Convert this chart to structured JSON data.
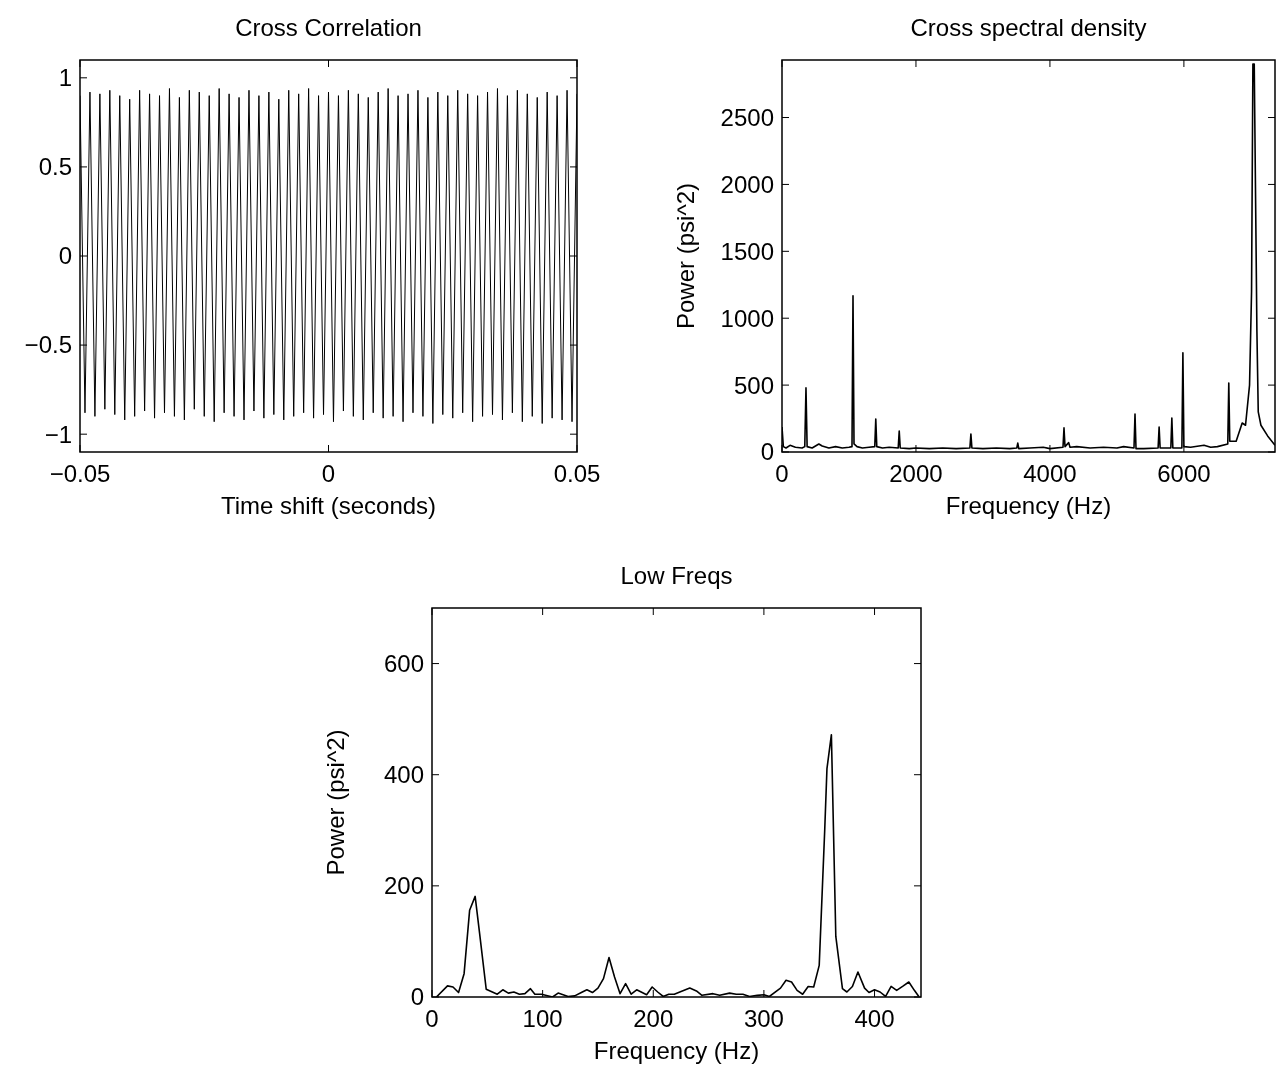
{
  "chart_data": [
    {
      "type": "line",
      "title": "Cross Correlation",
      "xlabel": "Time shift (seconds)",
      "x": [
        -0.05,
        -0.049,
        -0.048,
        -0.047,
        -0.046,
        -0.045,
        -0.044,
        -0.043,
        -0.042,
        -0.041,
        -0.04,
        -0.039,
        -0.038,
        -0.037,
        -0.036,
        -0.035,
        -0.034,
        -0.033,
        -0.032,
        -0.031,
        -0.03,
        -0.029,
        -0.028,
        -0.027,
        -0.026,
        -0.025,
        -0.024,
        -0.023,
        -0.022,
        -0.021,
        -0.02,
        -0.019,
        -0.018,
        -0.017,
        -0.016,
        -0.015,
        -0.014,
        -0.013,
        -0.012,
        -0.011,
        -0.01,
        -0.009,
        -0.008,
        -0.007,
        -0.006,
        -0.005,
        -0.004,
        -0.003,
        -0.002,
        -0.001,
        0,
        0.001,
        0.002,
        0.003,
        0.004,
        0.005,
        0.006,
        0.007,
        0.008,
        0.009,
        0.01,
        0.011,
        0.012,
        0.013,
        0.014,
        0.015,
        0.016,
        0.017,
        0.018,
        0.019,
        0.02,
        0.021,
        0.022,
        0.023,
        0.024,
        0.025,
        0.026,
        0.027,
        0.028,
        0.029,
        0.03,
        0.031,
        0.032,
        0.033,
        0.034,
        0.035,
        0.036,
        0.037,
        0.038,
        0.039,
        0.04,
        0.041,
        0.042,
        0.043,
        0.044,
        0.045,
        0.046,
        0.047,
        0.048,
        0.049,
        0.05
      ],
      "series": [
        {
          "color": "#000000",
          "values": [
            0.9,
            -0.88,
            0.92,
            -0.9,
            0.91,
            -0.86,
            0.93,
            -0.89,
            0.9,
            -0.92,
            0.88,
            -0.9,
            0.93,
            -0.87,
            0.91,
            -0.91,
            0.9,
            -0.88,
            0.94,
            -0.9,
            0.89,
            -0.92,
            0.93,
            -0.86,
            0.92,
            -0.9,
            0.9,
            -0.93,
            0.94,
            -0.88,
            0.91,
            -0.9,
            0.89,
            -0.92,
            0.93,
            -0.87,
            0.9,
            -0.91,
            0.92,
            -0.89,
            0.88,
            -0.92,
            0.93,
            -0.9,
            0.91,
            -0.88,
            0.94,
            -0.91,
            0.9,
            -0.89,
            0.92,
            -0.93,
            0.9,
            -0.87,
            0.93,
            -0.9,
            0.91,
            -0.92,
            0.89,
            -0.88,
            0.92,
            -0.91,
            0.94,
            -0.9,
            0.9,
            -0.93,
            0.91,
            -0.88,
            0.93,
            -0.9,
            0.89,
            -0.94,
            0.92,
            -0.89,
            0.9,
            -0.91,
            0.93,
            -0.88,
            0.91,
            -0.93,
            0.9,
            -0.9,
            0.92,
            -0.89,
            0.94,
            -0.92,
            0.9,
            -0.88,
            0.93,
            -0.93,
            0.91,
            -0.9,
            0.89,
            -0.94,
            0.92,
            -0.91,
            0.9,
            -0.92,
            0.93,
            -0.93,
            0.91
          ]
        }
      ],
      "xlim": [
        -0.05,
        0.05
      ],
      "xticks": [
        {
          "value": -0.05,
          "label": "−0.05"
        },
        0,
        0.05
      ],
      "ylim": [
        -1.1,
        1.1
      ],
      "yticks": [
        {
          "value": -1,
          "label": "−1"
        },
        {
          "value": -0.5,
          "label": "−0.5"
        },
        0,
        0.5,
        1
      ],
      "grid": false
    },
    {
      "type": "line",
      "title": "Cross spectral density",
      "xlabel": "Frequency (Hz)",
      "ylabel": "Power (psi^2)",
      "x": [
        0,
        20,
        60,
        120,
        200,
        300,
        340,
        358,
        375,
        450,
        550,
        600,
        700,
        800,
        900,
        1000,
        1045,
        1060,
        1075,
        1120,
        1200,
        1300,
        1385,
        1400,
        1415,
        1500,
        1600,
        1735,
        1750,
        1765,
        1900,
        2000,
        2200,
        2400,
        2600,
        2805,
        2820,
        2835,
        3000,
        3200,
        3400,
        3505,
        3520,
        3535,
        3700,
        3900,
        4000,
        4195,
        4210,
        4225,
        4280,
        4300,
        4400,
        4600,
        4800,
        5000,
        5100,
        5255,
        5270,
        5285,
        5400,
        5615,
        5630,
        5645,
        5805,
        5820,
        5835,
        5970,
        5985,
        6000,
        6100,
        6300,
        6400,
        6500,
        6655,
        6670,
        6685,
        6780,
        6870,
        6920,
        6980,
        7010,
        7030,
        7050,
        7090,
        7110,
        7150,
        7250,
        7360
      ],
      "series": [
        {
          "color": "#000000",
          "values": [
            187,
            40,
            30,
            50,
            35,
            30,
            40,
            479,
            40,
            30,
            60,
            45,
            30,
            40,
            30,
            35,
            40,
            1168,
            60,
            40,
            30,
            35,
            40,
            247,
            40,
            30,
            35,
            30,
            157,
            30,
            25,
            30,
            25,
            30,
            25,
            30,
            135,
            30,
            25,
            30,
            25,
            30,
            67,
            25,
            30,
            35,
            25,
            35,
            180,
            40,
            70,
            35,
            40,
            30,
            35,
            30,
            40,
            30,
            284,
            25,
            25,
            30,
            187,
            30,
            30,
            254,
            30,
            30,
            741,
            40,
            35,
            50,
            35,
            40,
            60,
            516,
            80,
            80,
            217,
            200,
            500,
            1200,
            2900,
            2900,
            900,
            300,
            200,
            120,
            50
          ]
        }
      ],
      "xlim": [
        0,
        7360
      ],
      "xticks": [
        0,
        2000,
        4000,
        6000
      ],
      "ylim": [
        0,
        2930
      ],
      "yticks": [
        0,
        500,
        1000,
        1500,
        2000,
        2500
      ],
      "grid": false
    },
    {
      "type": "line",
      "title": "Low Freqs",
      "xlabel": "Frequency (Hz)",
      "ylabel": "Power (psi^2)",
      "x": [
        4,
        14,
        19,
        24,
        29,
        34,
        39,
        43,
        49,
        59,
        64,
        69,
        74,
        79,
        84,
        89,
        93,
        99,
        109,
        114,
        123,
        129,
        135,
        140,
        145,
        150,
        155,
        160,
        165,
        170,
        175,
        180,
        185,
        194,
        199,
        204,
        209,
        214,
        219,
        224,
        233,
        239,
        244,
        254,
        260,
        269,
        275,
        281,
        287,
        294,
        300,
        305,
        315,
        320,
        325,
        330,
        335,
        340,
        345,
        350,
        355,
        357,
        361,
        365,
        371,
        375,
        380,
        385,
        391,
        395,
        400,
        405,
        410,
        415,
        420,
        426,
        431,
        436,
        440
      ],
      "series": [
        {
          "color": "#000000",
          "values": [
            0,
            20,
            18,
            8,
            42,
            156,
            181,
            115,
            14,
            5,
            13,
            7,
            9,
            5,
            6,
            15,
            5,
            5,
            0,
            7,
            1,
            2,
            8,
            13,
            8,
            16,
            33,
            71,
            36,
            6,
            24,
            5,
            13,
            4,
            18,
            9,
            1,
            5,
            5,
            9,
            16,
            11,
            3,
            6,
            3,
            7,
            5,
            5,
            1,
            3,
            4,
            1,
            16,
            30,
            27,
            12,
            5,
            19,
            18,
            57,
            302,
            411,
            472,
            109,
            15,
            9,
            19,
            45,
            16,
            8,
            13,
            9,
            1,
            19,
            12,
            20,
            27,
            12,
            1
          ]
        }
      ],
      "xlim": [
        0,
        442
      ],
      "xticks": [
        0,
        100,
        200,
        300,
        400
      ],
      "ylim": [
        0,
        700
      ],
      "yticks": [
        0,
        200,
        400,
        600
      ],
      "grid": false
    }
  ]
}
